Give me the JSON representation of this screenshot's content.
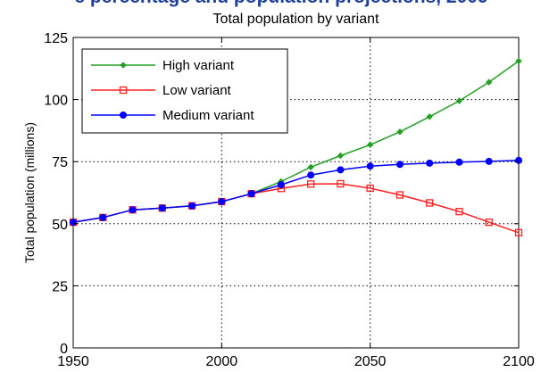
{
  "header": {
    "cut_title": "e percentage and population projections, 2009"
  },
  "chart_data": {
    "type": "line",
    "title": "Total population by variant",
    "xlabel": "",
    "ylabel": "Total population (millions)",
    "xlim": [
      1950,
      2100
    ],
    "ylim": [
      0,
      125
    ],
    "xticks": [
      1950,
      2000,
      2050,
      2100
    ],
    "yticks": [
      0,
      25,
      50,
      75,
      100,
      125
    ],
    "grid": true,
    "legend_position": "top-left",
    "series": [
      {
        "name": "High variant",
        "color": "#22a022",
        "marker": "diamond",
        "x": [
          1950,
          1960,
          1970,
          1980,
          1990,
          2000,
          2010,
          2020,
          2030,
          2040,
          2050,
          2060,
          2070,
          2080,
          2090,
          2100
        ],
        "values": [
          50.6,
          52.5,
          55.6,
          56.3,
          57.2,
          58.9,
          62.1,
          67,
          72.8,
          77.4,
          81.8,
          87,
          93.1,
          99.5,
          107,
          115.5
        ]
      },
      {
        "name": "Low variant",
        "color": "#ff2020",
        "marker": "square",
        "x": [
          1950,
          1960,
          1970,
          1980,
          1990,
          2000,
          2010,
          2020,
          2030,
          2040,
          2050,
          2060,
          2070,
          2080,
          2090,
          2100
        ],
        "values": [
          50.6,
          52.5,
          55.6,
          56.3,
          57.2,
          58.9,
          62.1,
          64.2,
          66,
          66.1,
          64.3,
          61.6,
          58.4,
          54.9,
          50.6,
          46.4
        ]
      },
      {
        "name": "Medium variant",
        "color": "#0000ff",
        "marker": "circle",
        "x": [
          1950,
          1960,
          1970,
          1980,
          1990,
          2000,
          2010,
          2020,
          2030,
          2040,
          2050,
          2060,
          2070,
          2080,
          2090,
          2100
        ],
        "values": [
          50.6,
          52.5,
          55.6,
          56.3,
          57.2,
          58.9,
          62.1,
          65.7,
          69.6,
          71.7,
          73.2,
          73.9,
          74.4,
          74.8,
          75.1,
          75.5
        ]
      }
    ]
  }
}
